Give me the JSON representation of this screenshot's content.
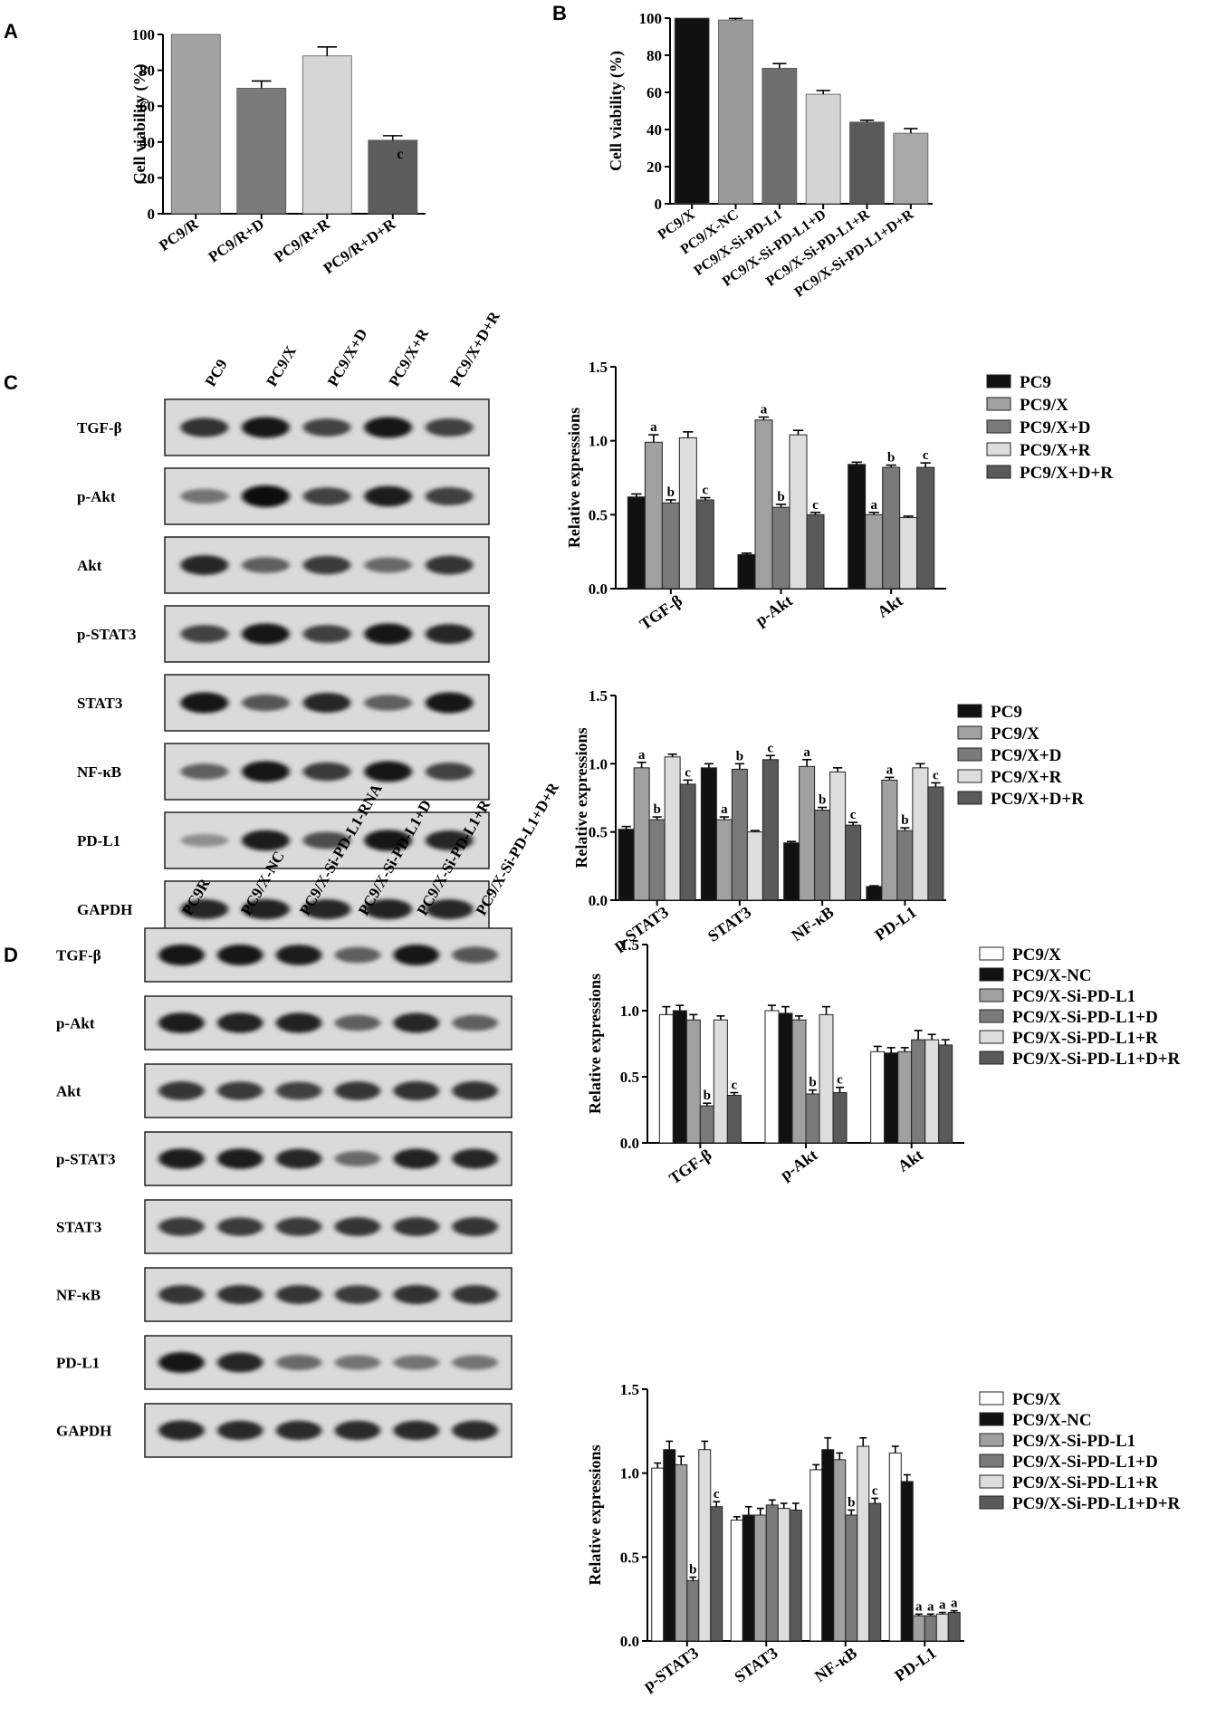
{
  "panel_labels": {
    "A": "A",
    "B": "B",
    "C": "C",
    "D": "D"
  },
  "colors": {
    "black": "#111111",
    "dark": "#585858",
    "mid": "#8a8a8a",
    "light": "#d9d9d9",
    "white": "#ffffff",
    "steel": "#a0a0a0",
    "dark2": "#6e6e6e"
  },
  "chart_data": [
    {
      "id": "A",
      "type": "bar",
      "ylabel": "Cell viability (%)",
      "ylim": [
        0,
        100
      ],
      "yticks": [
        0,
        20,
        40,
        60,
        80,
        100
      ],
      "categories": [
        "PC9/R",
        "PC9/R+D",
        "PC9/R+R",
        "PC9/R+D+R"
      ],
      "values": [
        100,
        70,
        88,
        41
      ],
      "errors": [
        0,
        4,
        5,
        2.5
      ],
      "colors": [
        "#a2a2a2",
        "#7a7a7a",
        "#d6d6d6",
        "#5c5c5c"
      ],
      "annotations": [
        "",
        "",
        "",
        "c"
      ]
    },
    {
      "id": "B",
      "type": "bar",
      "ylabel": "Cell viability (%)",
      "ylim": [
        0,
        100
      ],
      "yticks": [
        0,
        20,
        40,
        60,
        80,
        100
      ],
      "categories": [
        "PC9/X",
        "PC9/X-NC",
        "PC9/X-Si-PD-L1",
        "PC9/X-Si-PD-L1+D",
        "PC9/X-Si-PD-L1+R",
        "PC9/X-Si-PD-L1+D+R"
      ],
      "values": [
        100,
        99,
        73,
        59,
        44,
        38
      ],
      "errors": [
        0,
        0.8,
        2.5,
        2,
        1,
        2.5
      ],
      "colors": [
        "#111111",
        "#9a9a9a",
        "#6e6e6e",
        "#d4d4d4",
        "#5a5a5a",
        "#a9a9a9"
      ],
      "annotations": [
        "",
        "",
        "",
        "",
        "",
        ""
      ]
    },
    {
      "id": "C1",
      "type": "bar",
      "ylabel": "Relative expressions",
      "ylim": [
        0,
        1.5
      ],
      "yticks": [
        "0.0",
        "0.5",
        "1.0",
        "1.5"
      ],
      "categories": [
        "TGF-β",
        "p-Akt",
        "Akt"
      ],
      "series": [
        {
          "name": "PC9",
          "values": [
            0.62,
            0.23,
            0.84
          ],
          "errors": [
            0.02,
            0.01,
            0.015
          ],
          "color": "#111111"
        },
        {
          "name": "PC9/X",
          "values": [
            0.99,
            1.14,
            0.5
          ],
          "errors": [
            0.05,
            0.02,
            0.015
          ],
          "color": "#a0a0a0"
        },
        {
          "name": "PC9/X+D",
          "values": [
            0.58,
            0.55,
            0.82
          ],
          "errors": [
            0.02,
            0.02,
            0.015
          ],
          "color": "#7a7a7a"
        },
        {
          "name": "PC9/X+R",
          "values": [
            1.02,
            1.04,
            0.48
          ],
          "errors": [
            0.04,
            0.03,
            0.01
          ],
          "color": "#dddddd"
        },
        {
          "name": "PC9/X+D+R",
          "values": [
            0.6,
            0.5,
            0.82
          ],
          "errors": [
            0.015,
            0.015,
            0.03
          ],
          "color": "#5a5a5a"
        }
      ],
      "annotations": [
        [
          "",
          "a",
          "b",
          "",
          "c"
        ],
        [
          "",
          "a",
          "b",
          "",
          "c"
        ],
        [
          "",
          "a",
          "b",
          "",
          "c"
        ]
      ]
    },
    {
      "id": "C2",
      "type": "bar",
      "ylabel": "Relative expressions",
      "ylim": [
        0,
        1.5
      ],
      "yticks": [
        "0.0",
        "0.5",
        "1.0",
        "1.5"
      ],
      "categories": [
        "p-STAT3",
        "STAT3",
        "NF-κB",
        "PD-L1"
      ],
      "series": [
        {
          "name": "PC9",
          "values": [
            0.52,
            0.97,
            0.42,
            0.1
          ],
          "errors": [
            0.02,
            0.03,
            0.01,
            0.005
          ],
          "color": "#111111"
        },
        {
          "name": "PC9/X",
          "values": [
            0.97,
            0.59,
            0.98,
            0.88
          ],
          "errors": [
            0.04,
            0.02,
            0.05,
            0.02
          ],
          "color": "#a0a0a0"
        },
        {
          "name": "PC9/X+D",
          "values": [
            0.59,
            0.96,
            0.66,
            0.51
          ],
          "errors": [
            0.02,
            0.04,
            0.02,
            0.02
          ],
          "color": "#7a7a7a"
        },
        {
          "name": "PC9/X+R",
          "values": [
            1.05,
            0.5,
            0.94,
            0.97
          ],
          "errors": [
            0.02,
            0.01,
            0.03,
            0.03
          ],
          "color": "#dddddd"
        },
        {
          "name": "PC9/X+D+R",
          "values": [
            0.85,
            1.03,
            0.55,
            0.83
          ],
          "errors": [
            0.03,
            0.03,
            0.02,
            0.03
          ],
          "color": "#5a5a5a"
        }
      ],
      "annotations": [
        [
          "",
          "a",
          "b",
          "",
          "c"
        ],
        [
          "",
          "a",
          "b",
          "",
          "c"
        ],
        [
          "",
          "a",
          "b",
          "",
          "c"
        ],
        [
          "",
          "a",
          "b",
          "",
          "c"
        ]
      ]
    },
    {
      "id": "D1",
      "type": "bar",
      "ylabel": "Relative expressions",
      "ylim": [
        0,
        1.5
      ],
      "yticks": [
        "0.0",
        "0.5",
        "1.0",
        "1.5"
      ],
      "categories": [
        "TGF-β",
        "p-Akt",
        "Akt"
      ],
      "series": [
        {
          "name": "PC9/X",
          "values": [
            0.97,
            1.0,
            0.69
          ],
          "errors": [
            0.06,
            0.04,
            0.04
          ],
          "color": "#ffffff"
        },
        {
          "name": "PC9/X-NC",
          "values": [
            1.0,
            0.98,
            0.68
          ],
          "errors": [
            0.04,
            0.05,
            0.04
          ],
          "color": "#111111"
        },
        {
          "name": "PC9/X-Si-PD-L1",
          "values": [
            0.93,
            0.93,
            0.69
          ],
          "errors": [
            0.04,
            0.03,
            0.03
          ],
          "color": "#a0a0a0"
        },
        {
          "name": "PC9/X-Si-PD-L1+D",
          "values": [
            0.28,
            0.37,
            0.78
          ],
          "errors": [
            0.02,
            0.03,
            0.07
          ],
          "color": "#7a7a7a"
        },
        {
          "name": "PC9/X-Si-PD-L1+R",
          "values": [
            0.93,
            0.97,
            0.78
          ],
          "errors": [
            0.03,
            0.06,
            0.04
          ],
          "color": "#dddddd"
        },
        {
          "name": "PC9/X-Si-PD-L1+D+R",
          "values": [
            0.36,
            0.38,
            0.74
          ],
          "errors": [
            0.02,
            0.04,
            0.04
          ],
          "color": "#5a5a5a"
        }
      ],
      "annotations": [
        [
          "",
          "",
          "",
          "b",
          "",
          "c"
        ],
        [
          "",
          "",
          "",
          "b",
          "",
          "c"
        ],
        [
          "",
          "",
          "",
          "",
          "",
          ""
        ]
      ]
    },
    {
      "id": "D2",
      "type": "bar",
      "ylabel": "Relative expressions",
      "ylim": [
        0,
        1.5
      ],
      "yticks": [
        "0.0",
        "0.5",
        "1.0",
        "1.5"
      ],
      "categories": [
        "p-STAT3",
        "STAT3",
        "NF-κB",
        "PD-L1"
      ],
      "series": [
        {
          "name": "PC9/X",
          "values": [
            1.03,
            0.72,
            1.02,
            1.12
          ],
          "errors": [
            0.03,
            0.02,
            0.03,
            0.04
          ],
          "color": "#ffffff"
        },
        {
          "name": "PC9/X-NC",
          "values": [
            1.14,
            0.75,
            1.14,
            0.95
          ],
          "errors": [
            0.05,
            0.05,
            0.07,
            0.04
          ],
          "color": "#111111"
        },
        {
          "name": "PC9/X-Si-PD-L1",
          "values": [
            1.05,
            0.75,
            1.08,
            0.15
          ],
          "errors": [
            0.05,
            0.04,
            0.04,
            0.01
          ],
          "color": "#a0a0a0"
        },
        {
          "name": "PC9/X-Si-PD-L1+D",
          "values": [
            0.36,
            0.81,
            0.75,
            0.15
          ],
          "errors": [
            0.02,
            0.03,
            0.03,
            0.01
          ],
          "color": "#7a7a7a"
        },
        {
          "name": "PC9/X-Si-PD-L1+R",
          "values": [
            1.14,
            0.79,
            1.16,
            0.16
          ],
          "errors": [
            0.05,
            0.03,
            0.05,
            0.01
          ],
          "color": "#dddddd"
        },
        {
          "name": "PC9/X-Si-PD-L1+D+R",
          "values": [
            0.8,
            0.78,
            0.82,
            0.17
          ],
          "errors": [
            0.03,
            0.04,
            0.03,
            0.01
          ],
          "color": "#5a5a5a"
        }
      ],
      "annotations": [
        [
          "",
          "",
          "",
          "b",
          "",
          "c"
        ],
        [
          "",
          "",
          "",
          "",
          "",
          ""
        ],
        [
          "",
          "",
          "",
          "b",
          "",
          "c"
        ],
        [
          "",
          "",
          "a",
          "a",
          "a",
          "a"
        ]
      ]
    }
  ],
  "blot_C": {
    "lanes": [
      "PC9",
      "PC9/X",
      "PC9/X+D",
      "PC9/X+R",
      "PC9/X+D+R"
    ],
    "rows": [
      {
        "label": "TGF-β",
        "intensity": [
          0.8,
          0.95,
          0.7,
          0.95,
          0.72
        ]
      },
      {
        "label": "p-Akt",
        "intensity": [
          0.45,
          1.0,
          0.7,
          0.9,
          0.72
        ]
      },
      {
        "label": "Akt",
        "intensity": [
          0.85,
          0.55,
          0.75,
          0.5,
          0.78
        ]
      },
      {
        "label": "p-STAT3",
        "intensity": [
          0.7,
          0.95,
          0.72,
          0.95,
          0.85
        ]
      },
      {
        "label": "STAT3",
        "intensity": [
          0.92,
          0.6,
          0.85,
          0.55,
          0.92
        ]
      },
      {
        "label": "NF-κB",
        "intensity": [
          0.55,
          0.95,
          0.75,
          0.92,
          0.7
        ]
      },
      {
        "label": "PD-L1",
        "intensity": [
          0.3,
          0.9,
          0.65,
          0.95,
          0.85
        ]
      },
      {
        "label": "GAPDH",
        "intensity": [
          0.85,
          0.88,
          0.86,
          0.87,
          0.85
        ]
      }
    ]
  },
  "blot_D": {
    "lanes": [
      "PC9R",
      "PC9/X-NC",
      "PC9/X-Si-PD-L1-RNA",
      "PC9/X-Si-PD-L1+D",
      "PC9/X-Si-PD-L1+R",
      "PC9/X-Si-PD-L1+D+R"
    ],
    "rows": [
      {
        "label": "TGF-β",
        "intensity": [
          0.95,
          0.92,
          0.9,
          0.55,
          0.92,
          0.6
        ]
      },
      {
        "label": "p-Akt",
        "intensity": [
          0.9,
          0.88,
          0.88,
          0.55,
          0.85,
          0.55
        ]
      },
      {
        "label": "Akt",
        "intensity": [
          0.78,
          0.75,
          0.72,
          0.78,
          0.8,
          0.8
        ]
      },
      {
        "label": "p-STAT3",
        "intensity": [
          0.9,
          0.9,
          0.85,
          0.5,
          0.88,
          0.85
        ]
      },
      {
        "label": "STAT3",
        "intensity": [
          0.75,
          0.75,
          0.75,
          0.78,
          0.78,
          0.78
        ]
      },
      {
        "label": "NF-κB",
        "intensity": [
          0.78,
          0.8,
          0.78,
          0.75,
          0.8,
          0.78
        ]
      },
      {
        "label": "PD-L1",
        "intensity": [
          0.92,
          0.85,
          0.5,
          0.45,
          0.45,
          0.45
        ]
      },
      {
        "label": "GAPDH",
        "intensity": [
          0.85,
          0.82,
          0.82,
          0.83,
          0.82,
          0.82
        ]
      }
    ]
  }
}
